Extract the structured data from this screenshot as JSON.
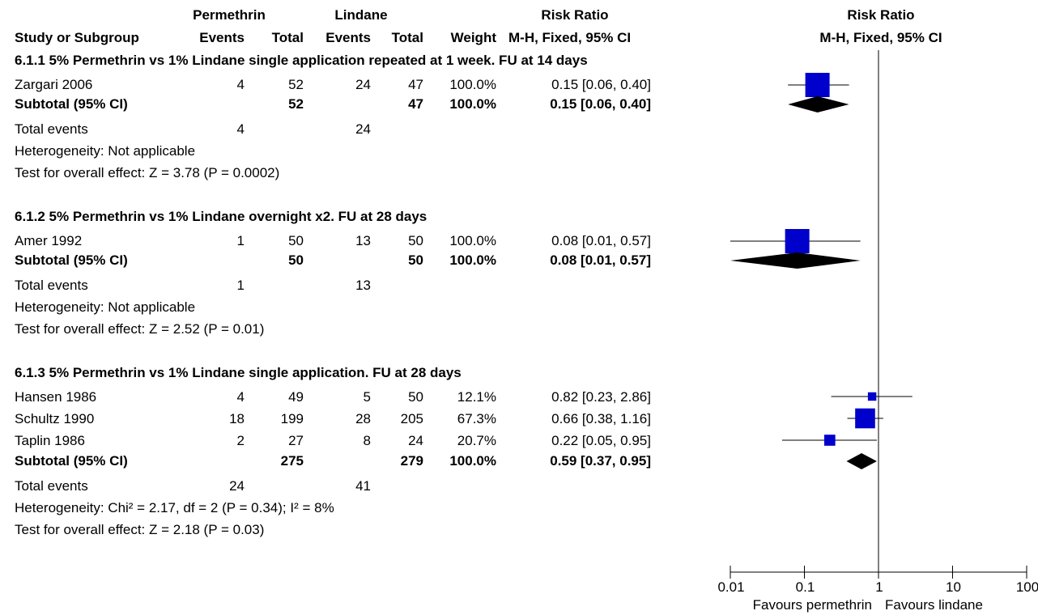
{
  "header": {
    "group1": "Permethrin",
    "group2": "Lindane",
    "rr_top": "Risk Ratio",
    "plot_top": "Risk Ratio",
    "study_col": "Study or Subgroup",
    "events1": "Events",
    "total1": "Total",
    "events2": "Events",
    "total2": "Total",
    "weight": "Weight",
    "rr_method": "M-H, Fixed, 95% CI",
    "plot_method": "M-H, Fixed, 95% CI"
  },
  "subgroups": [
    {
      "title": "6.1.1 5% Permethrin vs 1% Lindane single application repeated at 1 week. FU at 14 days",
      "studies": [
        {
          "name": "Zargari 2006",
          "e1": "4",
          "n1": "52",
          "e2": "24",
          "n2": "47",
          "weight": "100.0%",
          "rr": "0.15 [0.06, 0.40]"
        }
      ],
      "subtotal": {
        "label": "Subtotal (95% CI)",
        "n1": "52",
        "n2": "47",
        "weight": "100.0%",
        "rr": "0.15 [0.06, 0.40]"
      },
      "events": {
        "label": "Total events",
        "e1": "4",
        "e2": "24"
      },
      "heterogeneity": "Heterogeneity: Not applicable",
      "overall": "Test for overall effect: Z = 3.78 (P = 0.0002)"
    },
    {
      "title": "6.1.2 5% Permethrin vs 1% Lindane overnight x2. FU at 28 days",
      "studies": [
        {
          "name": "Amer 1992",
          "e1": "1",
          "n1": "50",
          "e2": "13",
          "n2": "50",
          "weight": "100.0%",
          "rr": "0.08 [0.01, 0.57]"
        }
      ],
      "subtotal": {
        "label": "Subtotal (95% CI)",
        "n1": "50",
        "n2": "50",
        "weight": "100.0%",
        "rr": "0.08 [0.01, 0.57]"
      },
      "events": {
        "label": "Total events",
        "e1": "1",
        "e2": "13"
      },
      "heterogeneity": "Heterogeneity: Not applicable",
      "overall": "Test for overall effect: Z = 2.52 (P = 0.01)"
    },
    {
      "title": "6.1.3 5% Permethrin vs 1% Lindane single application. FU at 28 days",
      "studies": [
        {
          "name": "Hansen 1986",
          "e1": "4",
          "n1": "49",
          "e2": "5",
          "n2": "50",
          "weight": "12.1%",
          "rr": "0.82 [0.23, 2.86]"
        },
        {
          "name": "Schultz 1990",
          "e1": "18",
          "n1": "199",
          "e2": "28",
          "n2": "205",
          "weight": "67.3%",
          "rr": "0.66 [0.38, 1.16]"
        },
        {
          "name": "Taplin 1986",
          "e1": "2",
          "n1": "27",
          "e2": "8",
          "n2": "24",
          "weight": "20.7%",
          "rr": "0.22 [0.05, 0.95]"
        }
      ],
      "subtotal": {
        "label": "Subtotal (95% CI)",
        "n1": "275",
        "n2": "279",
        "weight": "100.0%",
        "rr": "0.59 [0.37, 0.95]"
      },
      "events": {
        "label": "Total events",
        "e1": "24",
        "e2": "41"
      },
      "heterogeneity": "Heterogeneity: Chi² = 2.17, df = 2 (P = 0.34); I² = 8%",
      "overall": "Test for overall effect: Z = 2.18 (P = 0.03)"
    }
  ],
  "chart_data": {
    "type": "forest",
    "scale": "log",
    "xlim": [
      0.01,
      100
    ],
    "null_value": 1,
    "ticks": [
      "0.01",
      "0.1",
      "1",
      "10",
      "100"
    ],
    "favours_left": "Favours permethrin",
    "favours_right": "Favours lindane",
    "square_color": "#0000cc",
    "diamond_color": "#000000",
    "studies": [
      {
        "subgroup": 0,
        "estimate": 0.15,
        "low": 0.06,
        "high": 0.4,
        "weight": 100.0
      },
      {
        "subgroup": 1,
        "estimate": 0.08,
        "low": 0.01,
        "high": 0.57,
        "weight": 100.0
      },
      {
        "subgroup": 2,
        "estimate": 0.82,
        "low": 0.23,
        "high": 2.86,
        "weight": 12.1
      },
      {
        "subgroup": 2,
        "estimate": 0.66,
        "low": 0.38,
        "high": 1.16,
        "weight": 67.3
      },
      {
        "subgroup": 2,
        "estimate": 0.22,
        "low": 0.05,
        "high": 0.95,
        "weight": 20.7
      }
    ],
    "subtotals": [
      {
        "subgroup": 0,
        "estimate": 0.15,
        "low": 0.06,
        "high": 0.4
      },
      {
        "subgroup": 1,
        "estimate": 0.08,
        "low": 0.01,
        "high": 0.57
      },
      {
        "subgroup": 2,
        "estimate": 0.59,
        "low": 0.37,
        "high": 0.95
      }
    ]
  }
}
